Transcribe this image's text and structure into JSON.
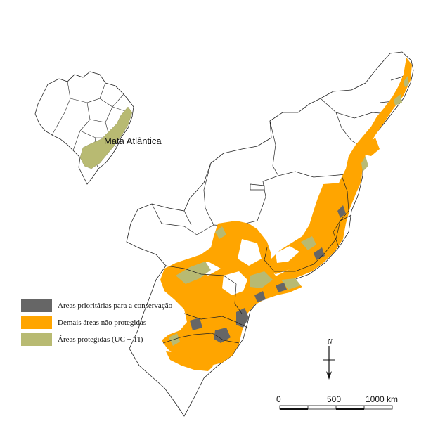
{
  "inset": {
    "label": "Mata Atlântica"
  },
  "legend": {
    "items": [
      {
        "label": "Áreas prioritárias para a conservação",
        "color": "#666666"
      },
      {
        "label": "Demais áreas não protegidas",
        "color": "#FFA500"
      },
      {
        "label": "Áreas protegidas (UC + TI)",
        "color": "#B8BA72"
      }
    ]
  },
  "north_arrow": {
    "letter": "N"
  },
  "scale_bar": {
    "ticks": [
      "0",
      "500",
      "1000 km"
    ]
  },
  "colors": {
    "orange": "#FFA500",
    "green": "#B8BA72",
    "priority": "#666666",
    "outline": "#222222"
  }
}
